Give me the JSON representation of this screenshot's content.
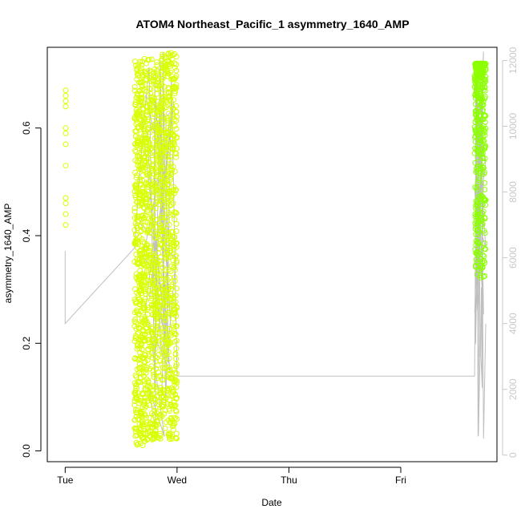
{
  "chart_data": {
    "type": "scatter",
    "title": "ATOM4 Northeast_Pacific_1 asymmetry_1640_AMP",
    "xlabel": "Date",
    "ylabel": "asymmetry_1640_AMP",
    "x_ticks": [
      "Tue",
      "Wed",
      "Thu",
      "Fri"
    ],
    "x_tick_positions_days": [
      0,
      1,
      2,
      3
    ],
    "xlim_days": [
      -0.16,
      3.86
    ],
    "ylim": [
      -0.02,
      0.75
    ],
    "y_ticks": [
      0.0,
      0.2,
      0.4,
      0.6
    ],
    "y2lim": [
      -200,
      12400
    ],
    "y2_ticks": [
      0,
      2000,
      4000,
      6000,
      8000,
      10000,
      12000
    ],
    "grid": false,
    "colors": {
      "points_early": "#d9ff00",
      "points_late": "#8cff00",
      "secondary_line": "#bfbfbf",
      "right_axis": "#c8c8c8"
    },
    "series": [
      {
        "values_summary": "point clusters",
        "clusters": [
          {
            "x_range_days": [
              0.0,
              0.01
            ],
            "y_range": [
              0.42,
              0.67
            ],
            "points": [
              0.42,
              0.44,
              0.46,
              0.47,
              0.53,
              0.57,
              0.59,
              0.6,
              0.64,
              0.65,
              0.66,
              0.67
            ]
          },
          {
            "x_range_days": [
              0.62,
              0.72
            ],
            "y_range": [
              0.01,
              0.73
            ]
          },
          {
            "x_range_days": [
              0.72,
              0.84
            ],
            "y_range": [
              0.02,
              0.73
            ]
          },
          {
            "x_range_days": [
              0.84,
              1.0
            ],
            "y_range": [
              0.02,
              0.74
            ]
          },
          {
            "x_range_days": [
              3.66,
              3.76
            ],
            "y_range": [
              0.32,
              0.72
            ]
          }
        ]
      },
      {
        "values_summary": "secondary-axis line",
        "x": [
          0.0,
          0.0,
          0.62,
          0.65,
          0.7,
          0.75,
          0.8,
          0.85,
          0.9,
          0.95,
          1.0,
          3.66,
          3.68,
          3.7,
          3.72,
          3.74,
          3.76
        ],
        "y": [
          6200,
          4000,
          6300,
          7800,
          10000,
          11800,
          2000,
          12000,
          1500,
          11500,
          2400,
          2400,
          12000,
          3000,
          10500,
          500,
          4000
        ]
      }
    ]
  }
}
